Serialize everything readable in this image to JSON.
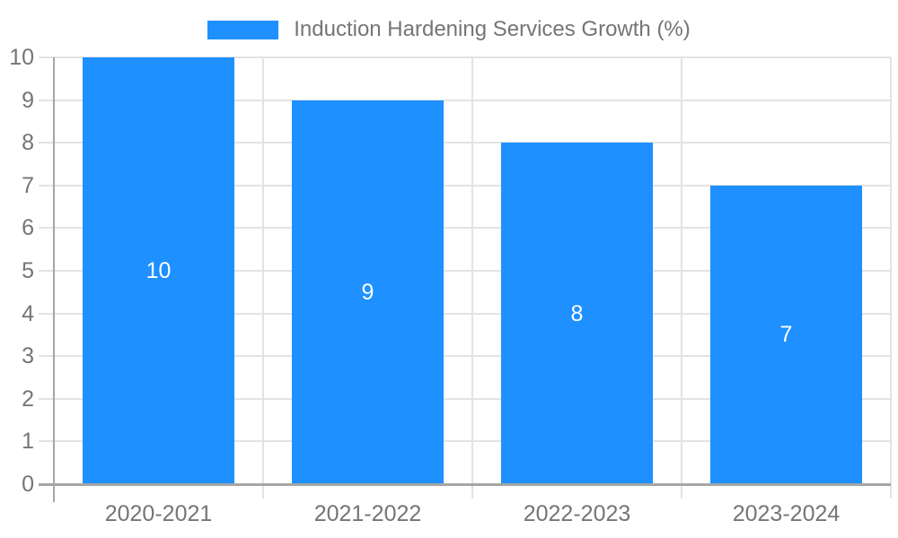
{
  "chart_data": {
    "type": "bar",
    "title": "Induction Hardening Services Growth (%)",
    "categories": [
      "2020-2021",
      "2021-2022",
      "2022-2023",
      "2023-2024"
    ],
    "values": [
      10,
      9,
      8,
      7
    ],
    "value_labels": [
      "10",
      "9",
      "8",
      "7"
    ],
    "ytick_labels": [
      "0",
      "1",
      "2",
      "3",
      "4",
      "5",
      "6",
      "7",
      "8",
      "9",
      "10"
    ],
    "xlabel": "",
    "ylabel": "",
    "ylim": [
      0,
      10
    ],
    "ytick_step": 1,
    "grid": true,
    "legend_position": "top",
    "value_label_position": "inside-center",
    "colors": {
      "bar": "#1e90ff",
      "value_label": "#ffffff",
      "axis_text": "#757575",
      "gridline": "#e3e3e3",
      "axis_line": "#a6a6a6",
      "background": "#ffffff"
    }
  }
}
